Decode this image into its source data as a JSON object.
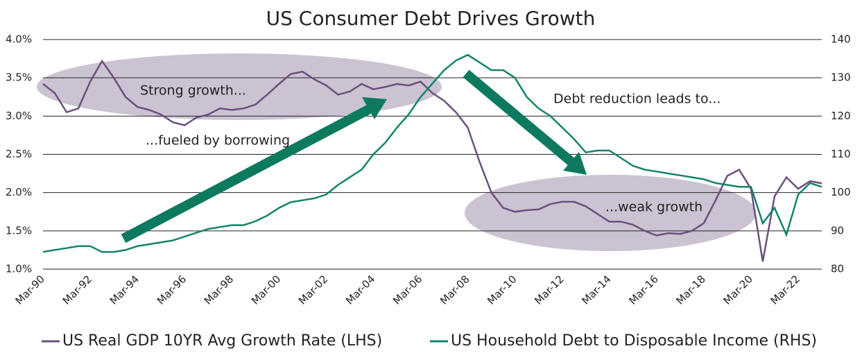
{
  "chart_data": {
    "type": "line",
    "title": "US Consumer Debt Drives Growth",
    "categories": [
      "Mar-90",
      null,
      null,
      null,
      "Mar-92",
      null,
      null,
      null,
      "Mar-94",
      null,
      null,
      null,
      "Mar-96",
      null,
      null,
      null,
      "Mar-98",
      null,
      null,
      null,
      "Mar-00",
      null,
      null,
      null,
      "Mar-02",
      null,
      null,
      null,
      "Mar-04",
      null,
      null,
      null,
      "Mar-06",
      null,
      null,
      null,
      "Mar-08",
      null,
      null,
      null,
      "Mar-10",
      null,
      null,
      null,
      "Mar-12",
      null,
      null,
      null,
      "Mar-14",
      null,
      null,
      null,
      "Mar-16",
      null,
      null,
      null,
      "Mar-18",
      null,
      null,
      null,
      "Mar-20",
      null,
      null,
      null,
      "Mar-22",
      null,
      null
    ],
    "series": [
      {
        "name": "US Real GDP 10YR Avg Growth Rate (LHS)",
        "color": "#6b4f7c",
        "values": [
          3.42,
          3.3,
          3.05,
          3.1,
          3.45,
          3.72,
          3.5,
          3.25,
          3.12,
          3.08,
          3.02,
          2.92,
          2.88,
          2.98,
          3.02,
          3.1,
          3.08,
          3.1,
          3.15,
          3.28,
          3.42,
          3.55,
          3.58,
          3.48,
          3.4,
          3.28,
          3.32,
          3.42,
          3.35,
          3.38,
          3.42,
          3.4,
          3.45,
          3.3,
          3.2,
          3.05,
          2.85,
          2.4,
          2.0,
          1.8,
          1.75,
          1.77,
          1.78,
          1.85,
          1.88,
          1.88,
          1.82,
          1.72,
          1.62,
          1.62,
          1.58,
          1.5,
          1.44,
          1.47,
          1.46,
          1.5,
          1.6,
          1.9,
          2.22,
          2.3,
          2.05,
          1.1,
          1.95,
          2.2,
          2.05,
          2.15,
          2.12
        ]
      },
      {
        "name": "US Household Debt to Disposable Income (RHS)",
        "color": "#13836b",
        "axis": "y2",
        "values": [
          84.5,
          85,
          85.5,
          86,
          86,
          84.5,
          84.5,
          85,
          86,
          86.5,
          87,
          87.5,
          88.5,
          89.5,
          90.5,
          91,
          91.5,
          91.5,
          92.5,
          94,
          96,
          97.5,
          98,
          98.5,
          99.5,
          102,
          104,
          106,
          110,
          113,
          117,
          120.5,
          125,
          128.5,
          132,
          134.5,
          136,
          134,
          132,
          132,
          130,
          125,
          122,
          120,
          117,
          114,
          110.5,
          111,
          111,
          109,
          107,
          106,
          105.5,
          105,
          104.5,
          104,
          103.5,
          102.5,
          102,
          101.5,
          101.5,
          92,
          96,
          89,
          99.5,
          102.5,
          101.5
        ]
      }
    ],
    "ylim": [
      1,
      4
    ],
    "yticks": [
      {
        "value": 1,
        "label": "1.0%"
      },
      {
        "value": 1.5,
        "label": "1.5%"
      },
      {
        "value": 2,
        "label": "2.0%"
      },
      {
        "value": 2.5,
        "label": "2.5%"
      },
      {
        "value": 3,
        "label": "3.0%"
      },
      {
        "value": 3.5,
        "label": "3.5%"
      },
      {
        "value": 4,
        "label": "4.0%"
      }
    ],
    "y2lim": [
      80,
      140
    ],
    "y2ticks": [
      80,
      90,
      100,
      110,
      120,
      130,
      140
    ],
    "grid": true,
    "legend": "bottom",
    "annotations": [
      "Strong growth...",
      "...fueled by borrowing",
      "Debt reduction leads to...",
      "...weak growth"
    ]
  }
}
